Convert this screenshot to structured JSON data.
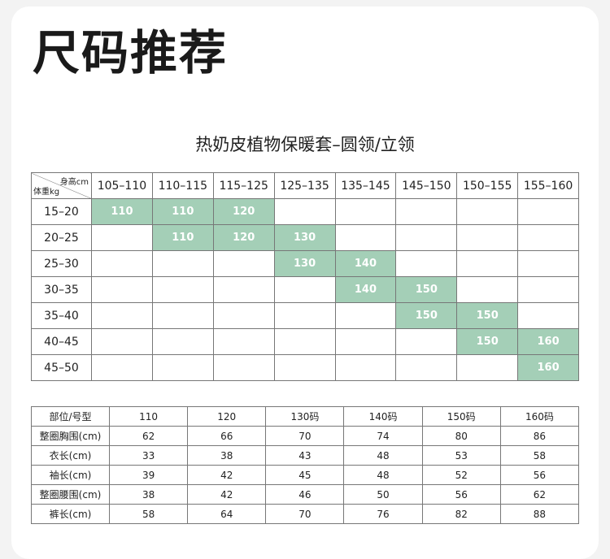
{
  "page_title": "尺码推荐",
  "subtitle": "热奶皮植物保暖套–圆领/立领",
  "size_table": {
    "corner_top": "身高cm",
    "corner_bottom": "体重kg",
    "heights": [
      "105–110",
      "110–115",
      "115–125",
      "125–135",
      "135–145",
      "145–150",
      "150–155",
      "155–160"
    ],
    "rows": [
      {
        "weight": "15–20",
        "cells": [
          "110",
          "110",
          "120",
          "",
          "",
          "",
          "",
          ""
        ]
      },
      {
        "weight": "20–25",
        "cells": [
          "",
          "110",
          "120",
          "130",
          "",
          "",
          "",
          ""
        ]
      },
      {
        "weight": "25–30",
        "cells": [
          "",
          "",
          "",
          "130",
          "140",
          "",
          "",
          ""
        ]
      },
      {
        "weight": "30–35",
        "cells": [
          "",
          "",
          "",
          "",
          "140",
          "150",
          "",
          ""
        ]
      },
      {
        "weight": "35–40",
        "cells": [
          "",
          "",
          "",
          "",
          "",
          "150",
          "150",
          ""
        ]
      },
      {
        "weight": "40–45",
        "cells": [
          "",
          "",
          "",
          "",
          "",
          "",
          "150",
          "160"
        ]
      },
      {
        "weight": "45–50",
        "cells": [
          "",
          "",
          "",
          "",
          "",
          "",
          "",
          "160"
        ]
      }
    ],
    "highlight_color": "#a4cfb7"
  },
  "measure_table": {
    "header": [
      "部位/号型",
      "110",
      "120",
      "130码",
      "140码",
      "150码",
      "160码"
    ],
    "rows": [
      [
        "整圈胸围(cm)",
        "62",
        "66",
        "70",
        "74",
        "80",
        "86"
      ],
      [
        "衣长(cm)",
        "33",
        "38",
        "43",
        "48",
        "53",
        "58"
      ],
      [
        "袖长(cm)",
        "39",
        "42",
        "45",
        "48",
        "52",
        "56"
      ],
      [
        "整圈腰围(cm)",
        "38",
        "42",
        "46",
        "50",
        "56",
        "62"
      ],
      [
        "裤长(cm)",
        "58",
        "64",
        "70",
        "76",
        "82",
        "88"
      ]
    ]
  }
}
